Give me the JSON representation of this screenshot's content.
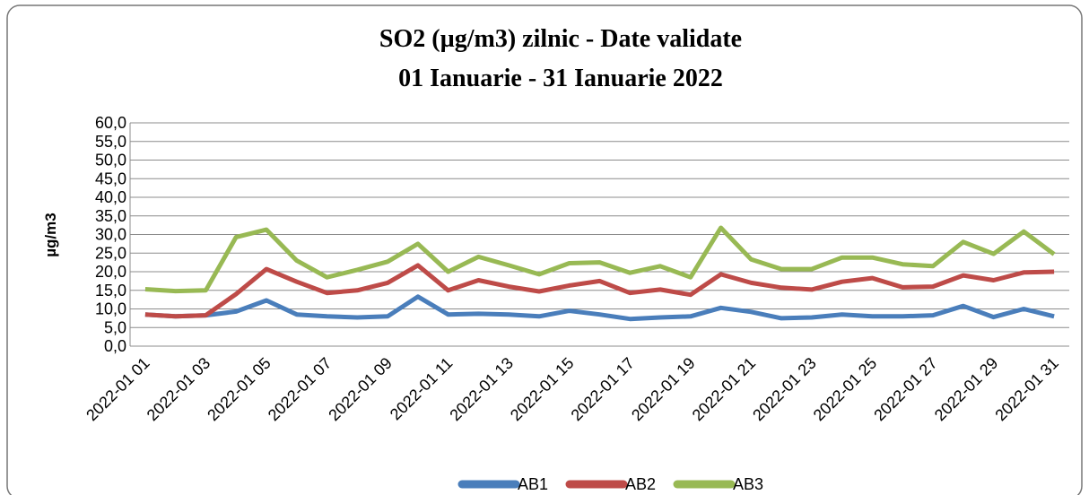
{
  "chart_data": {
    "type": "line",
    "title": "SO2 (µg/m3) zilnic - Date validate",
    "subtitle": "01 Ianuarie  - 31 Ianuarie 2022",
    "y_label": "µg/m3",
    "categories": [
      "2022-01 01",
      null,
      "2022-01 03",
      null,
      "2022-01 05",
      null,
      "2022-01 07",
      null,
      "2022-01 09",
      null,
      "2022-01 11",
      null,
      "2022-01 13",
      null,
      "2022-01 15",
      null,
      "2022-01 17",
      null,
      "2022-01 19",
      null,
      "2022-01 21",
      null,
      "2022-01 23",
      null,
      "2022-01 25",
      null,
      "2022-01 27",
      null,
      "2022-01 29",
      null,
      "2022-01 31"
    ],
    "series": [
      {
        "name": "AB1",
        "color": "#4a7ebb",
        "values": [
          8.5,
          8,
          8.3,
          9.3,
          12.3,
          8.5,
          8,
          7.7,
          8,
          13.3,
          8.5,
          8.7,
          8.5,
          8,
          9.5,
          8.5,
          7.3,
          7.7,
          8,
          10.3,
          9.2,
          7.5,
          7.7,
          8.5,
          8,
          8,
          8.3,
          10.8,
          7.8,
          10,
          8
        ]
      },
      {
        "name": "AB2",
        "color": "#be4b48",
        "values": [
          8.5,
          8,
          8.3,
          14,
          20.7,
          17.3,
          14.3,
          15,
          17,
          21.7,
          15,
          17.7,
          16,
          14.7,
          16.3,
          17.5,
          14.3,
          15.2,
          13.8,
          19.3,
          17,
          15.7,
          15.2,
          17.3,
          18.3,
          15.8,
          16,
          19,
          17.7,
          19.8,
          20
        ]
      },
      {
        "name": "AB3",
        "color": "#98b954",
        "values": [
          15.3,
          14.8,
          15,
          29.3,
          31.3,
          23,
          18.5,
          20.5,
          22.7,
          27.5,
          20,
          24,
          21.7,
          19.3,
          22.3,
          22.5,
          19.7,
          21.5,
          18.5,
          31.8,
          23.3,
          20.7,
          20.7,
          23.8,
          23.8,
          22,
          21.5,
          28,
          24.8,
          30.8,
          24.7
        ]
      }
    ],
    "ylim": [
      0,
      60
    ],
    "yticks": [
      {
        "value": 0,
        "label": "0,0"
      },
      {
        "value": 5,
        "label": "5,0"
      },
      {
        "value": 10,
        "label": "10,0"
      },
      {
        "value": 15,
        "label": "15,0"
      },
      {
        "value": 20,
        "label": "20,0"
      },
      {
        "value": 25,
        "label": "25,0"
      },
      {
        "value": 30,
        "label": "30,0"
      },
      {
        "value": 35,
        "label": "35,0"
      },
      {
        "value": 40,
        "label": "40,0"
      },
      {
        "value": 45,
        "label": "45,0"
      },
      {
        "value": 50,
        "label": "50,0"
      },
      {
        "value": 55,
        "label": "55,0"
      },
      {
        "value": 60,
        "label": "60,0"
      }
    ],
    "grid": true,
    "legend": "bottom"
  }
}
